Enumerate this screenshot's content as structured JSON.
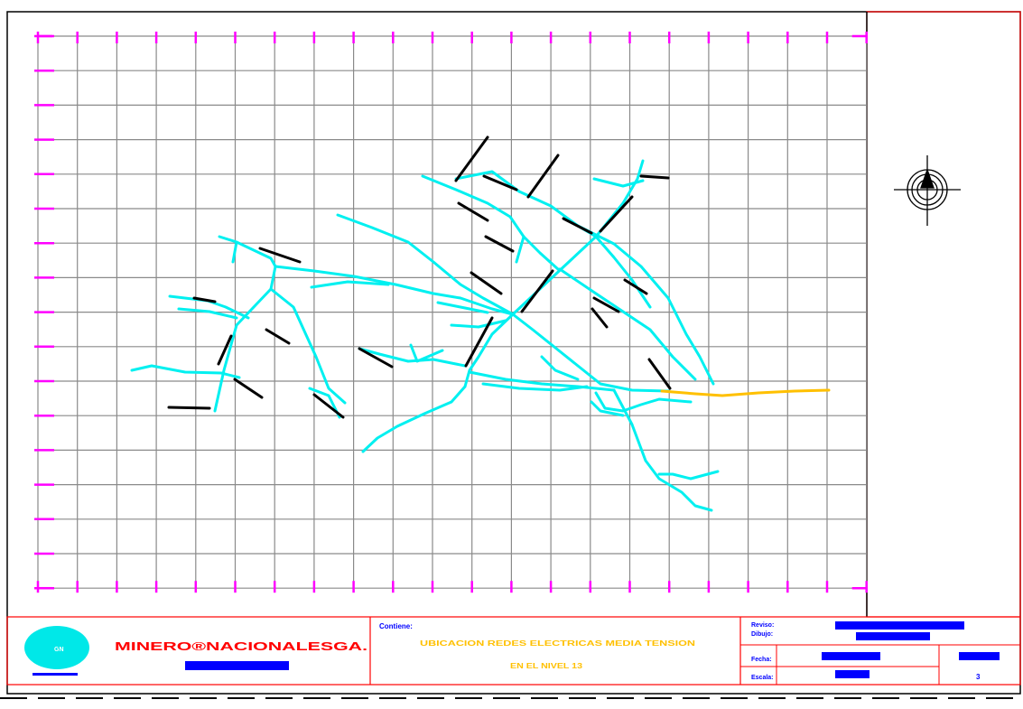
{
  "drawing": {
    "colors": {
      "background": "#ffffff",
      "grid": "#8a8a8a",
      "ticks": "#ff00ff",
      "tunnels": "#00f0f0",
      "cable_medium_tension": "#ffc000",
      "labels": "#000000",
      "frame_red": "#ff0000",
      "frame_blue": "#0000ff",
      "logo": "#00e8e8"
    },
    "north_arrow": {
      "icon": "north-arrow-icon",
      "glyph": "N"
    }
  },
  "title_block": {
    "company_name": "MINERO®NACIONALESGA.",
    "contains_label": "Contiene:",
    "title_line_1": "UBICACION REDES ELECTRICAS MEDIA TENSION",
    "title_line_2": "EN EL NIVEL 13",
    "review_label": "Reviso:",
    "drew_label": "Dibujo:",
    "date_label": "Fecha:",
    "scale_label": "Escala:",
    "sheet_number": "3"
  }
}
